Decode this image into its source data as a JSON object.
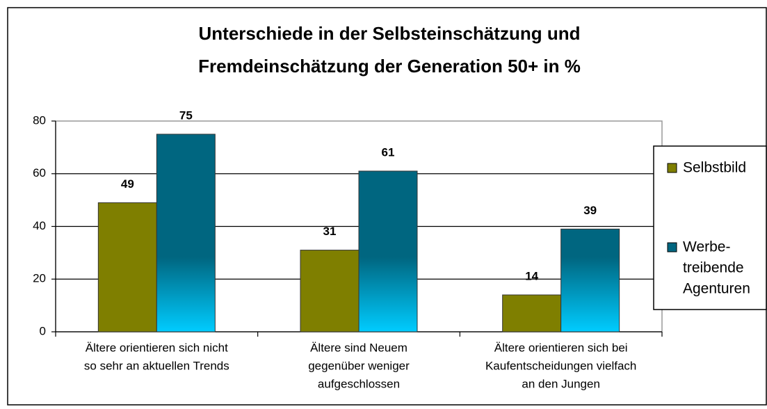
{
  "chart_data": {
    "type": "bar",
    "title": [
      "Unterschiede in der Selbsteinschätzung und",
      "Fremdeinschätzung der Generation 50+ in %"
    ],
    "categories": [
      [
        "Ältere orientieren sich nicht",
        "so sehr an aktuellen Trends"
      ],
      [
        "Ältere sind Neuem",
        "gegenüber weniger",
        "aufgeschlossen"
      ],
      [
        "Ältere orientieren sich bei",
        "Kaufentscheidungen vielfach",
        "an den Jungen"
      ]
    ],
    "series": [
      {
        "name": [
          "Selbstbild"
        ],
        "color": "#7f7f00",
        "values": [
          49,
          31,
          14
        ]
      },
      {
        "name": [
          "Werbe-",
          "treibende",
          "Agenturen"
        ],
        "color": "#006680",
        "values": [
          75,
          61,
          39
        ]
      }
    ],
    "ylim": [
      0,
      80
    ],
    "yticks": [
      0,
      20,
      40,
      60,
      80
    ],
    "grid": true,
    "legend": "right"
  }
}
